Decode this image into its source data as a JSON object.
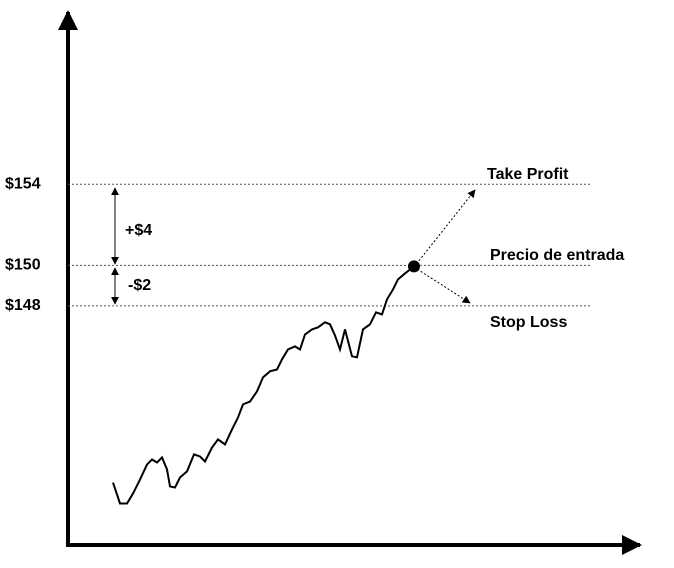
{
  "chart_data": {
    "type": "line",
    "x": [
      45,
      52,
      59,
      65,
      72,
      79,
      84,
      89,
      94,
      99,
      102,
      107,
      112,
      119,
      126,
      132,
      137,
      144,
      150,
      157,
      164,
      170,
      175,
      182,
      189,
      195,
      202,
      209,
      214,
      220,
      227,
      232,
      237,
      244,
      250,
      257,
      262,
      267,
      272,
      277,
      284,
      289,
      295,
      302,
      308,
      314,
      319,
      325,
      330,
      337,
      346
    ],
    "series": [
      {
        "color": "#000000",
        "values": [
          139.28,
          138.25,
          138.25,
          138.74,
          139.43,
          140.17,
          140.42,
          140.27,
          140.52,
          139.93,
          139.09,
          139.04,
          139.53,
          139.83,
          140.67,
          140.57,
          140.32,
          141.01,
          141.41,
          141.16,
          141.9,
          142.49,
          143.14,
          143.28,
          143.78,
          144.47,
          144.77,
          144.86,
          145.36,
          145.85,
          146.0,
          145.85,
          146.59,
          146.84,
          146.94,
          147.19,
          147.09,
          146.54,
          145.85,
          146.84,
          145.51,
          145.46,
          146.84,
          147.09,
          147.68,
          147.58,
          148.32,
          148.81,
          149.31,
          149.6,
          149.95
        ]
      }
    ],
    "xlim": [
      0,
      572
    ],
    "ylim": [
      136.2,
      162.6
    ],
    "yticks": [
      {
        "value": 154,
        "label": "$154"
      },
      {
        "value": 150,
        "label": "$150"
      },
      {
        "value": 148,
        "label": "$148"
      }
    ],
    "grid": true,
    "annotations": [
      "Take Profit",
      "Precio de entrada",
      "Stop Loss",
      "+$4",
      "-$2"
    ]
  }
}
